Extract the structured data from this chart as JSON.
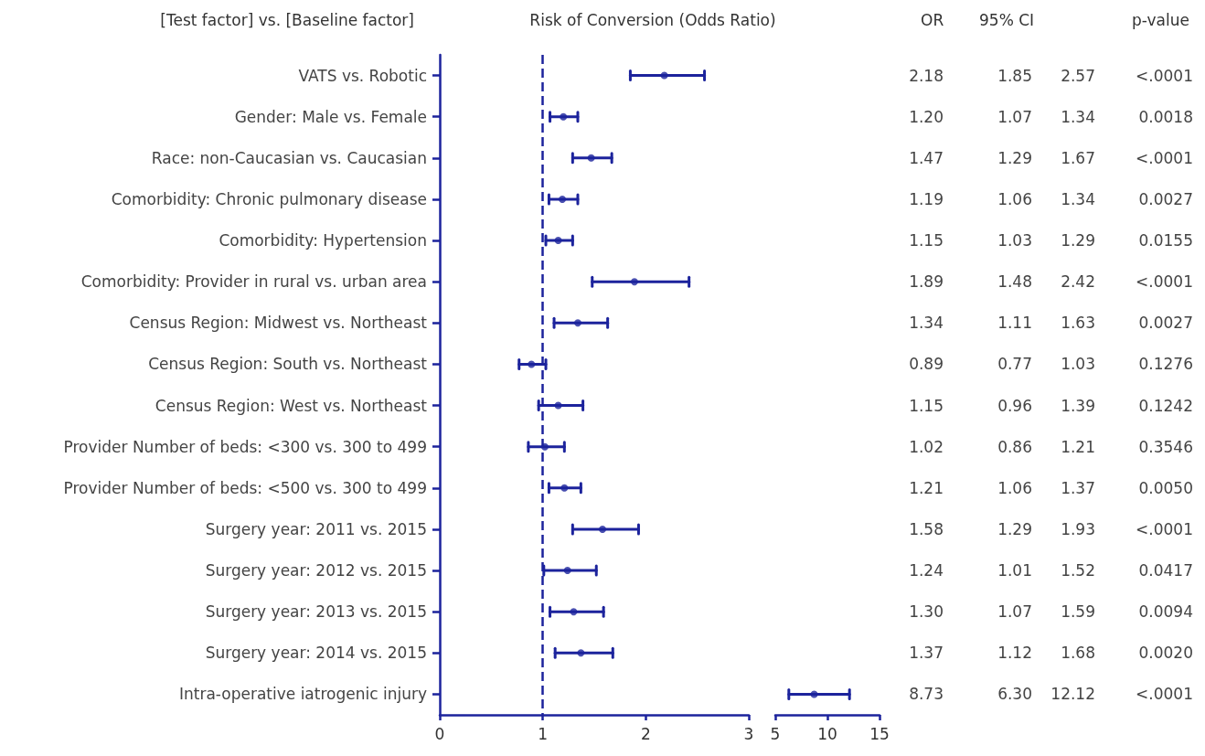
{
  "chart_data": [
    {
      "type": "scatter",
      "title": "Risk of Conversion (Odds Ratio)",
      "ylabel": "[Test factor] vs. [Baseline factor]",
      "orientation": "horizontal",
      "color": "#1c239c",
      "marker": "circle",
      "grid": false,
      "categories": [
        "VATS vs. Robotic",
        "Gender: Male vs. Female",
        "Race: non-Caucasian vs. Caucasian",
        "Comorbidity: Chronic pulmonary disease",
        "Comorbidity: Hypertension",
        "Comorbidity: Provider in rural vs. urban area",
        "Census Region: Midwest vs. Northeast",
        "Census Region: South vs. Northeast",
        "Census Region: West vs. Northeast",
        "Provider Number of beds: <300 vs. 300 to 499",
        "Provider Number of beds: <500 vs. 300 to 499",
        "Surgery year: 2011 vs. 2015",
        "Surgery year: 2012 vs. 2015",
        "Surgery year: 2013 vs. 2015",
        "Surgery year: 2014 vs. 2015",
        "Intra-operative iatrogenic injury"
      ],
      "values": [
        2.18,
        1.2,
        1.47,
        1.19,
        1.15,
        1.89,
        1.34,
        0.89,
        1.15,
        1.02,
        1.21,
        1.58,
        1.24,
        1.3,
        1.37,
        null
      ],
      "errors": [
        [
          1.85,
          2.57
        ],
        [
          1.07,
          1.34
        ],
        [
          1.29,
          1.67
        ],
        [
          1.06,
          1.34
        ],
        [
          1.03,
          1.29
        ],
        [
          1.48,
          2.42
        ],
        [
          1.11,
          1.63
        ],
        [
          0.77,
          1.03
        ],
        [
          0.96,
          1.39
        ],
        [
          0.86,
          1.21
        ],
        [
          1.06,
          1.37
        ],
        [
          1.29,
          1.93
        ],
        [
          1.01,
          1.52
        ],
        [
          1.07,
          1.59
        ],
        [
          1.12,
          1.68
        ],
        null
      ],
      "xlim": [
        0,
        3
      ],
      "xticks": [
        0,
        1,
        2,
        3
      ],
      "ref_lines": [
        {
          "axis": "x",
          "value": 1,
          "line_style": "dashed"
        }
      ],
      "annotations": [
        "OR",
        "95% CI",
        "p-value",
        "2.18",
        "1.85",
        "2.57",
        "<.0001",
        "1.20",
        "1.07",
        "1.34",
        "0.0018",
        "1.47",
        "1.29",
        "1.67",
        "<.0001",
        "1.19",
        "1.06",
        "1.34",
        "0.0027",
        "1.15",
        "1.03",
        "1.29",
        "0.0155",
        "1.89",
        "1.48",
        "2.42",
        "<.0001",
        "1.34",
        "1.11",
        "1.63",
        "0.0027",
        "0.89",
        "0.77",
        "1.03",
        "0.1276",
        "1.15",
        "0.96",
        "1.39",
        "0.1242",
        "1.02",
        "0.86",
        "1.21",
        "0.3546",
        "1.21",
        "1.06",
        "1.37",
        "0.0050",
        "1.58",
        "1.29",
        "1.93",
        "<.0001",
        "1.24",
        "1.01",
        "1.52",
        "0.0417",
        "1.30",
        "1.07",
        "1.59",
        "0.0094",
        "1.37",
        "1.12",
        "1.68",
        "0.0020",
        "8.73",
        "6.30",
        "12.12",
        "<.0001"
      ]
    },
    {
      "type": "scatter",
      "orientation": "horizontal",
      "color": "#1c239c",
      "marker": "circle",
      "grid": false,
      "tick_labels": "x",
      "categories": [
        null,
        null,
        null,
        null,
        null,
        null,
        null,
        null,
        null,
        null,
        null,
        null,
        null,
        null,
        null,
        null
      ],
      "values": [
        null,
        null,
        null,
        null,
        null,
        null,
        null,
        null,
        null,
        null,
        null,
        null,
        null,
        null,
        null,
        8.73
      ],
      "errors": [
        null,
        null,
        null,
        null,
        null,
        null,
        null,
        null,
        null,
        null,
        null,
        null,
        null,
        null,
        null,
        [
          6.3,
          12.12
        ]
      ],
      "xlim": [
        5,
        15
      ],
      "xticks": [
        5,
        10,
        15
      ]
    }
  ]
}
